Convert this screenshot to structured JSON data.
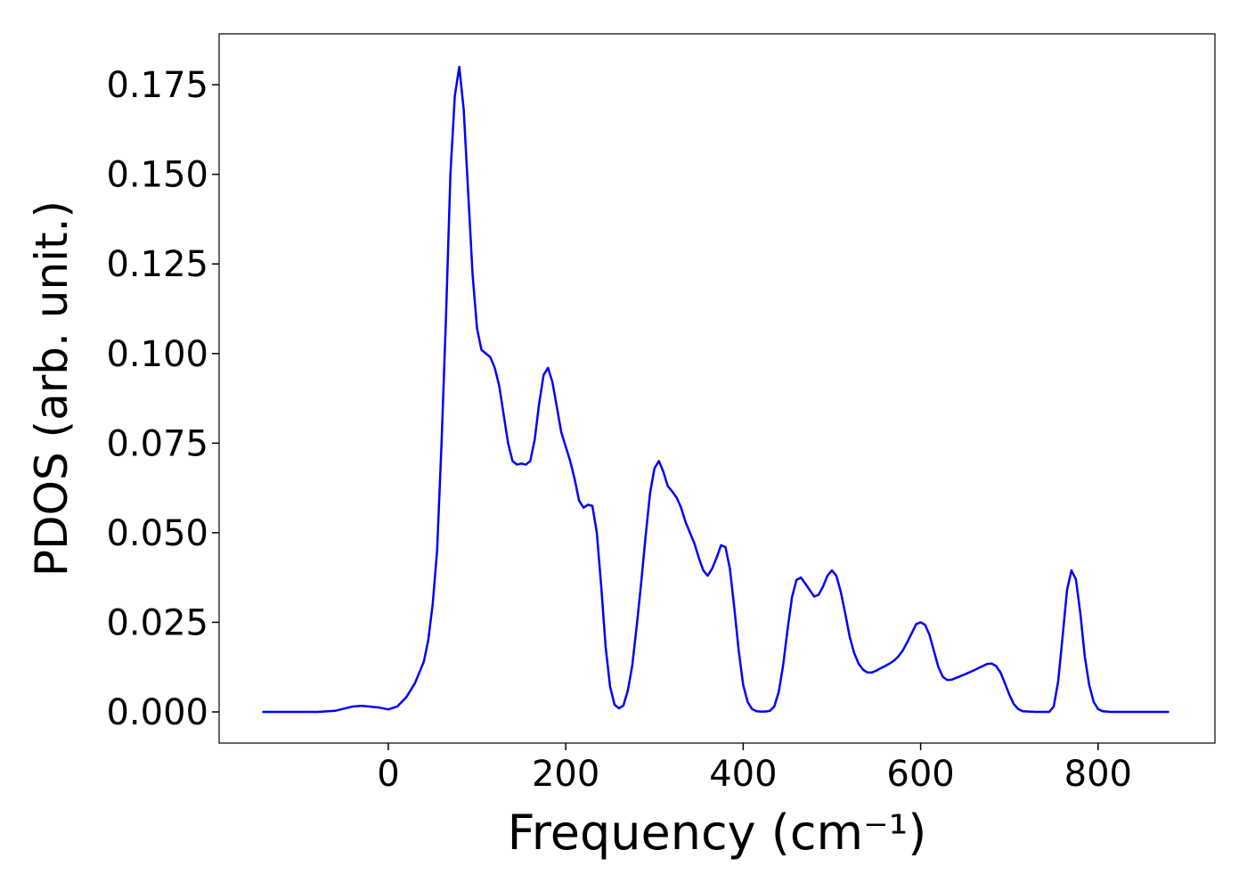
{
  "chart_data": {
    "type": "line",
    "xlabel": "Frequency (cm⁻¹)",
    "ylabel": "PDOS (arb. unit.)",
    "series": [
      {
        "color": "#0000ff",
        "x": [
          -142,
          -80,
          -60,
          -40,
          -30,
          -10,
          0,
          10,
          20,
          30,
          40,
          45,
          50,
          55,
          60,
          65,
          70,
          75,
          80,
          85,
          90,
          95,
          100,
          105,
          110,
          115,
          120,
          125,
          130,
          135,
          140,
          145,
          150,
          155,
          160,
          165,
          170,
          175,
          180,
          185,
          190,
          195,
          200,
          205,
          210,
          215,
          220,
          225,
          230,
          235,
          240,
          245,
          250,
          255,
          260,
          265,
          270,
          275,
          280,
          285,
          290,
          295,
          300,
          305,
          310,
          315,
          320,
          325,
          330,
          335,
          340,
          345,
          350,
          355,
          360,
          365,
          370,
          375,
          380,
          385,
          390,
          395,
          400,
          405,
          410,
          415,
          420,
          425,
          430,
          435,
          440,
          445,
          450,
          455,
          460,
          465,
          470,
          475,
          480,
          485,
          490,
          495,
          500,
          505,
          510,
          515,
          520,
          525,
          530,
          535,
          540,
          545,
          550,
          555,
          560,
          565,
          570,
          575,
          580,
          585,
          590,
          595,
          600,
          605,
          610,
          615,
          620,
          625,
          630,
          635,
          640,
          650,
          660,
          670,
          675,
          680,
          685,
          690,
          695,
          700,
          705,
          710,
          715,
          730,
          745,
          750,
          755,
          760,
          765,
          770,
          775,
          780,
          785,
          790,
          795,
          800,
          805,
          815,
          880
        ],
        "values": [
          0,
          0,
          0.0003,
          0.0015,
          0.0017,
          0.0012,
          0.0007,
          0.0015,
          0.004,
          0.008,
          0.014,
          0.02,
          0.03,
          0.045,
          0.075,
          0.11,
          0.15,
          0.172,
          0.18,
          0.168,
          0.145,
          0.122,
          0.107,
          0.101,
          0.1,
          0.099,
          0.096,
          0.091,
          0.083,
          0.075,
          0.07,
          0.069,
          0.0693,
          0.069,
          0.07,
          0.076,
          0.086,
          0.094,
          0.096,
          0.092,
          0.085,
          0.078,
          0.074,
          0.07,
          0.065,
          0.059,
          0.057,
          0.0578,
          0.0575,
          0.05,
          0.035,
          0.018,
          0.007,
          0.002,
          0.001,
          0.0018,
          0.006,
          0.013,
          0.024,
          0.036,
          0.049,
          0.061,
          0.068,
          0.07,
          0.067,
          0.063,
          0.0615,
          0.0598,
          0.057,
          0.053,
          0.05,
          0.047,
          0.043,
          0.0395,
          0.038,
          0.04,
          0.043,
          0.0465,
          0.046,
          0.04,
          0.029,
          0.017,
          0.0075,
          0.0028,
          0.0008,
          0.0002,
          0.0001,
          0.0001,
          0.0003,
          0.0015,
          0.0055,
          0.013,
          0.023,
          0.032,
          0.0368,
          0.0375,
          0.0358,
          0.034,
          0.0322,
          0.0327,
          0.035,
          0.038,
          0.0395,
          0.038,
          0.0335,
          0.0275,
          0.021,
          0.0165,
          0.0135,
          0.0118,
          0.011,
          0.011,
          0.0115,
          0.0122,
          0.0128,
          0.0135,
          0.0143,
          0.0155,
          0.0172,
          0.0195,
          0.022,
          0.0245,
          0.025,
          0.0243,
          0.0215,
          0.017,
          0.0125,
          0.0098,
          0.0089,
          0.009,
          0.0095,
          0.0105,
          0.0116,
          0.0128,
          0.0134,
          0.0135,
          0.0128,
          0.011,
          0.008,
          0.0048,
          0.0022,
          0.0008,
          0.0002,
          0,
          0,
          0.0015,
          0.0085,
          0.021,
          0.034,
          0.0395,
          0.037,
          0.0275,
          0.0155,
          0.0075,
          0.0028,
          0.0008,
          0.0002,
          0,
          0
        ]
      }
    ],
    "xlim": [
      -190.7,
      931.7
    ],
    "ylim": [
      -0.0087,
      0.1892
    ],
    "xticks": [
      0,
      200,
      400,
      600,
      800
    ],
    "yticks": [
      {
        "value": 0,
        "label": "0.000"
      },
      0.025,
      {
        "value": 0.05,
        "label": "0.050"
      },
      0.075,
      {
        "value": 0.1,
        "label": "0.100"
      },
      0.125,
      {
        "value": 0.15,
        "label": "0.150"
      },
      0.175
    ],
    "grid": false
  }
}
